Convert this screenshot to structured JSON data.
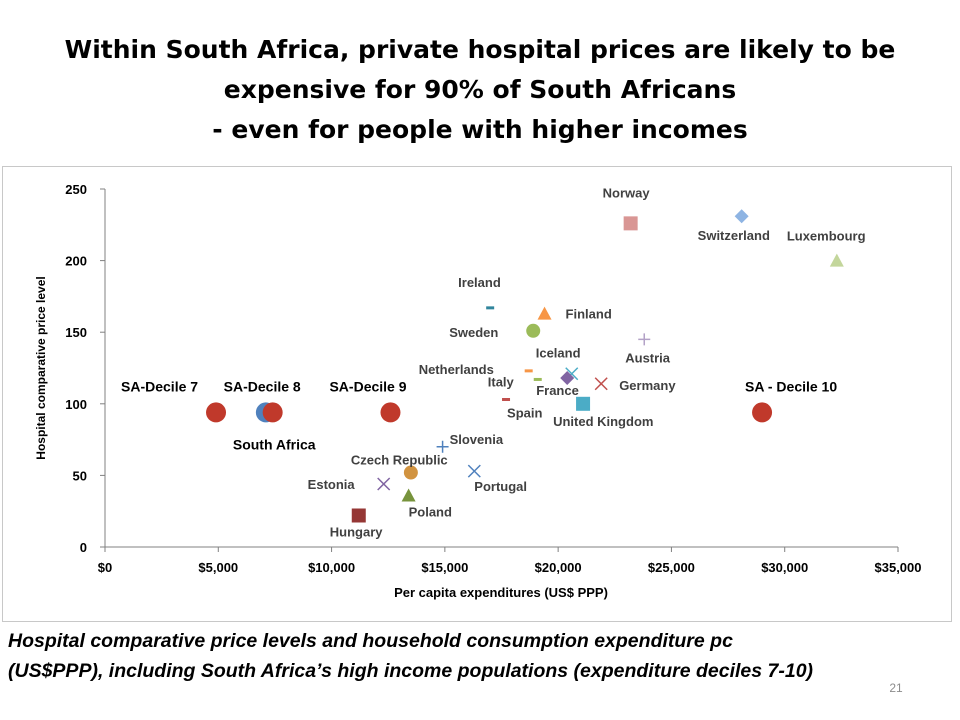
{
  "slide": {
    "title_lines": [
      "Within South Africa, private hospital prices are likely to be",
      "expensive for 90% of South Africans",
      "- even for people with higher incomes"
    ],
    "caption_lines": [
      "Hospital comparative price levels and household consumption expenditure pc",
      "(US$PPP), including South Africa’s high income populations (expenditure deciles 7-10)"
    ],
    "page_number": "21"
  },
  "chart_data": {
    "type": "scatter",
    "xlabel": "Per capita expenditures (US$ PPP)",
    "ylabel": "Hospital comparative price level",
    "xlim": [
      0,
      35000
    ],
    "ylim": [
      0,
      250
    ],
    "x_ticks": [
      "$0",
      "$5,000",
      "$10,000",
      "$15,000",
      "$20,000",
      "$25,000",
      "$30,000",
      "$35,000"
    ],
    "y_ticks": [
      "0",
      "50",
      "100",
      "150",
      "200",
      "250"
    ],
    "grid": false,
    "legend": "none",
    "points": [
      {
        "label": "Norway",
        "x": 23200,
        "y": 226,
        "marker": "square",
        "color": "#d99694"
      },
      {
        "label": "Switzerland",
        "x": 28100,
        "y": 231,
        "marker": "diamond",
        "color": "#8eb4e3"
      },
      {
        "label": "Luxembourg",
        "x": 32300,
        "y": 200,
        "marker": "triangle",
        "color": "#c3d69b"
      },
      {
        "label": "Ireland",
        "x": 17000,
        "y": 167,
        "marker": "dash",
        "color": "#31859c"
      },
      {
        "label": "Finland",
        "x": 19400,
        "y": 163,
        "marker": "triangle",
        "color": "#f79646"
      },
      {
        "label": "Sweden",
        "x": 18900,
        "y": 151,
        "marker": "circle",
        "color": "#9bbb59"
      },
      {
        "label": "Austria",
        "x": 23800,
        "y": 145,
        "marker": "plus",
        "color": "#b3a2c7"
      },
      {
        "label": "Iceland",
        "x": 20600,
        "y": 121,
        "marker": "x",
        "color": "#4bacc6"
      },
      {
        "label": "Netherlands",
        "x": 18700,
        "y": 123,
        "marker": "dash",
        "color": "#f79646"
      },
      {
        "label": "Italy",
        "x": 19100,
        "y": 117,
        "marker": "dash",
        "color": "#9bbb59"
      },
      {
        "label": "France",
        "x": 20400,
        "y": 118,
        "marker": "diamond",
        "color": "#8064a2"
      },
      {
        "label": "Germany",
        "x": 21900,
        "y": 114,
        "marker": "x",
        "color": "#c0504d"
      },
      {
        "label": "Spain",
        "x": 17700,
        "y": 103,
        "marker": "dash",
        "color": "#c0504d"
      },
      {
        "label": "United Kingdom",
        "x": 21100,
        "y": 100,
        "marker": "square",
        "color": "#4bacc6"
      },
      {
        "label": "Slovenia",
        "x": 14900,
        "y": 70,
        "marker": "plus",
        "color": "#4f81bd"
      },
      {
        "label": "Czech Republic",
        "x": 13500,
        "y": 52,
        "marker": "circle",
        "color": "#d19340"
      },
      {
        "label": "Portugal",
        "x": 16300,
        "y": 53,
        "marker": "x",
        "color": "#4f81bd"
      },
      {
        "label": "Estonia",
        "x": 12300,
        "y": 44,
        "marker": "x",
        "color": "#8064a2"
      },
      {
        "label": "Poland",
        "x": 13400,
        "y": 36,
        "marker": "triangle",
        "color": "#77933c"
      },
      {
        "label": "Hungary",
        "x": 11200,
        "y": 22,
        "marker": "square",
        "color": "#953735"
      },
      {
        "label": "South Africa",
        "x": 7100,
        "y": 94,
        "marker": "circle",
        "color": "#4f81bd"
      },
      {
        "label": "SA-Decile 7",
        "x": 4900,
        "y": 94,
        "marker": "circle",
        "color": "#c0392b"
      },
      {
        "label": "SA-Decile 8",
        "x": 7400,
        "y": 94,
        "marker": "circle",
        "color": "#c0392b"
      },
      {
        "label": "SA-Decile 9",
        "x": 12600,
        "y": 94,
        "marker": "circle",
        "color": "#c0392b"
      },
      {
        "label": "SA - Decile 10",
        "x": 29000,
        "y": 94,
        "marker": "circle",
        "color": "#c0392b"
      }
    ]
  }
}
